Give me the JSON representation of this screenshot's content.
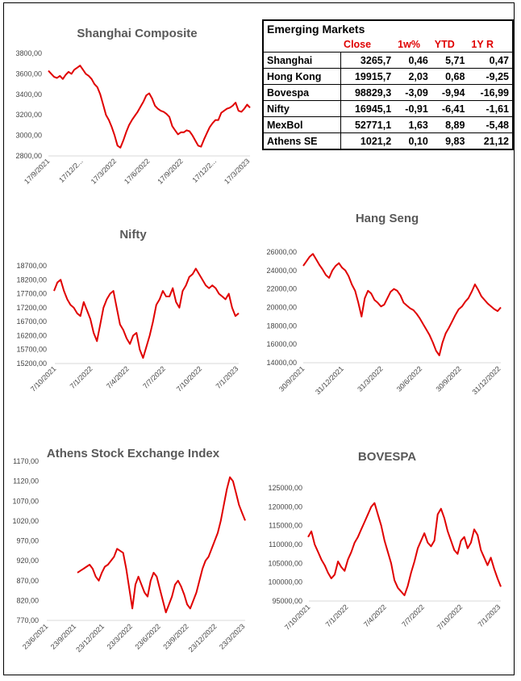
{
  "table": {
    "title": "Emerging Markets",
    "headers": [
      "Close",
      "1w%",
      "YTD",
      "1Y R"
    ],
    "rows": [
      {
        "name": "Shanghai",
        "close": "3265,7",
        "w1": "0,46",
        "ytd": "5,71",
        "y1": "0,47"
      },
      {
        "name": "Hong Kong",
        "close": "19915,7",
        "w1": "2,03",
        "ytd": "0,68",
        "y1": "-9,25"
      },
      {
        "name": "Bovespa",
        "close": "98829,3",
        "w1": "-3,09",
        "ytd": "-9,94",
        "y1": "-16,99"
      },
      {
        "name": "Nifty",
        "close": "16945,1",
        "w1": "-0,91",
        "ytd": "-6,41",
        "y1": "-1,61"
      },
      {
        "name": "MexBol",
        "close": "52771,1",
        "w1": "1,63",
        "ytd": "8,89",
        "y1": "-5,48"
      },
      {
        "name": "Athens SE",
        "close": "1021,2",
        "w1": "0,10",
        "ytd": "9,83",
        "y1": "21,12"
      }
    ]
  },
  "chart_data": [
    {
      "id": "shanghai",
      "type": "line",
      "title": "Shanghai Composite",
      "yticks": [
        "3800,00",
        "3600,00",
        "3400,00",
        "3200,00",
        "3000,00",
        "2800,00"
      ],
      "ylim": [
        2800,
        3800
      ],
      "xticks": [
        "17/9/2021",
        "17/12/2...",
        "17/3/2022",
        "17/6/2022",
        "17/9/2022",
        "17/12/2...",
        "17/3/2023"
      ],
      "series_color": "#e00000",
      "values": [
        3630,
        3600,
        3570,
        3560,
        3580,
        3550,
        3590,
        3620,
        3600,
        3640,
        3660,
        3680,
        3640,
        3600,
        3580,
        3550,
        3500,
        3470,
        3400,
        3300,
        3200,
        3150,
        3080,
        3000,
        2900,
        2880,
        2950,
        3030,
        3100,
        3150,
        3190,
        3230,
        3280,
        3330,
        3390,
        3410,
        3360,
        3290,
        3260,
        3240,
        3230,
        3210,
        3180,
        3090,
        3050,
        3010,
        3030,
        3030,
        3050,
        3040,
        3000,
        2950,
        2900,
        2890,
        2960,
        3020,
        3080,
        3120,
        3150,
        3150,
        3220,
        3240,
        3260,
        3270,
        3290,
        3320,
        3240,
        3230,
        3260,
        3300,
        3270
      ]
    },
    {
      "id": "nifty",
      "type": "line",
      "title": "Nifty",
      "yticks": [
        "18700,00",
        "18200,00",
        "17700,00",
        "17200,00",
        "16700,00",
        "16200,00",
        "15700,00",
        "15200,00"
      ],
      "ylim": [
        15200,
        18700
      ],
      "xticks": [
        "7/10/2021",
        "7/1/2022",
        "7/4/2022",
        "7/7/2022",
        "7/10/2022",
        "7/1/2023"
      ],
      "series_color": "#e00000",
      "values": [
        17800,
        18100,
        18200,
        17800,
        17500,
        17300,
        17200,
        17000,
        16900,
        17400,
        17100,
        16800,
        16300,
        16000,
        16600,
        17200,
        17500,
        17700,
        17800,
        17200,
        16600,
        16400,
        16100,
        15900,
        16200,
        16300,
        15700,
        15400,
        15800,
        16200,
        16700,
        17300,
        17500,
        17800,
        17600,
        17600,
        17900,
        17400,
        17200,
        17800,
        18000,
        18300,
        18400,
        18600,
        18400,
        18200,
        18000,
        17900,
        18000,
        17900,
        17700,
        17600,
        17500,
        17700,
        17200,
        16900,
        17000
      ]
    },
    {
      "id": "hangseng",
      "type": "line",
      "title": "Hang Seng",
      "yticks": [
        "26000,00",
        "24000,00",
        "22000,00",
        "20000,00",
        "18000,00",
        "16000,00",
        "14000,00"
      ],
      "ylim": [
        14000,
        26000
      ],
      "xticks": [
        "30/9/2021",
        "31/12/2021",
        "31/3/2022",
        "30/6/2022",
        "30/9/2022",
        "31/12/2022"
      ],
      "series_color": "#e00000",
      "values": [
        24500,
        25000,
        25500,
        25800,
        25200,
        24600,
        24100,
        23500,
        23200,
        24000,
        24500,
        24800,
        24300,
        24000,
        23400,
        22500,
        21800,
        20500,
        19000,
        21000,
        21800,
        21500,
        20800,
        20500,
        20100,
        20300,
        21000,
        21700,
        22000,
        21800,
        21300,
        20500,
        20200,
        19900,
        19700,
        19300,
        18800,
        18200,
        17600,
        17000,
        16200,
        15300,
        14800,
        16200,
        17200,
        17800,
        18500,
        19200,
        19800,
        20100,
        20600,
        21000,
        21700,
        22500,
        21900,
        21200,
        20800,
        20400,
        20100,
        19800,
        19600,
        20000
      ]
    },
    {
      "id": "athens",
      "type": "line",
      "title": "Athens Stock Exchange Index",
      "yticks": [
        "1170,00",
        "1120,00",
        "1070,00",
        "1020,00",
        "970,00",
        "920,00",
        "870,00",
        "820,00",
        "770,00"
      ],
      "ylim": [
        770,
        1170
      ],
      "xticks": [
        "23/6/2021",
        "23/9/2021",
        "23/12/2021",
        "23/3/2022",
        "23/6/2022",
        "23/9/2022",
        "23/12/2022",
        "23/3/2023"
      ],
      "series_color": "#e00000",
      "values": [
        890,
        895,
        900,
        905,
        910,
        900,
        880,
        870,
        890,
        905,
        910,
        920,
        930,
        950,
        945,
        940,
        900,
        850,
        800,
        860,
        880,
        860,
        840,
        830,
        870,
        890,
        880,
        850,
        820,
        790,
        810,
        830,
        860,
        870,
        855,
        835,
        810,
        800,
        820,
        840,
        870,
        900,
        920,
        930,
        950,
        970,
        990,
        1020,
        1060,
        1100,
        1130,
        1120,
        1090,
        1060,
        1040,
        1021
      ]
    },
    {
      "id": "bovespa",
      "type": "line",
      "title": "BOVESPA",
      "yticks": [
        "125000,00",
        "120000,00",
        "115000,00",
        "110000,00",
        "105000,00",
        "100000,00",
        "95000,00"
      ],
      "ylim": [
        95000,
        125000
      ],
      "xticks": [
        "7/10/2021",
        "7/1/2022",
        "7/4/2022",
        "7/7/2022",
        "7/10/2022",
        "7/1/2023"
      ],
      "series_color": "#e00000",
      "values": [
        112000,
        113500,
        110000,
        108000,
        106000,
        104500,
        102500,
        101000,
        102000,
        105500,
        104000,
        103000,
        106000,
        108000,
        110500,
        112000,
        114000,
        116000,
        118000,
        120000,
        121000,
        118000,
        115000,
        111000,
        108000,
        105000,
        100500,
        98500,
        97500,
        96500,
        99000,
        102500,
        105500,
        109000,
        111000,
        113000,
        110500,
        109500,
        111000,
        118000,
        119500,
        117000,
        113500,
        111000,
        108500,
        107500,
        111000,
        112000,
        109000,
        110500,
        114000,
        112500,
        108500,
        106500,
        104500,
        106500,
        103500,
        101000,
        98800
      ]
    }
  ]
}
